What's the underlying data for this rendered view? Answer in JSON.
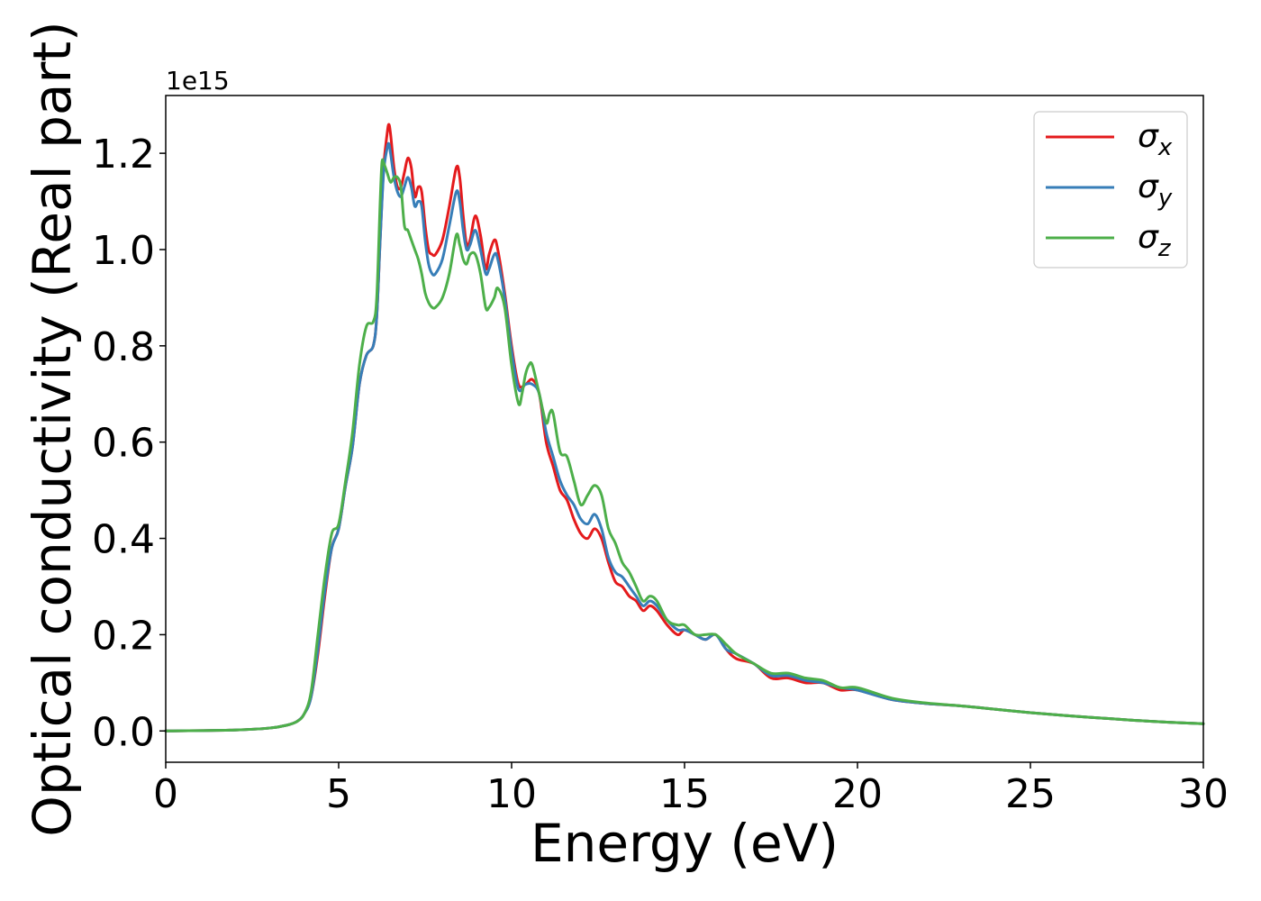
{
  "chart_data": {
    "type": "line",
    "title": "",
    "xlabel": "Energy (eV)",
    "ylabel": "Optical conductivity (Real part)",
    "y_offset_text": "1e15",
    "xlim": [
      0,
      30
    ],
    "ylim": [
      -0.065,
      1.32
    ],
    "xticks": [
      0,
      5,
      10,
      15,
      20,
      25,
      30
    ],
    "xtick_labels": [
      "0",
      "5",
      "10",
      "15",
      "20",
      "25",
      "30"
    ],
    "yticks": [
      0.0,
      0.2,
      0.4,
      0.6,
      0.8,
      1.0,
      1.2
    ],
    "ytick_labels": [
      "0.0",
      "0.2",
      "0.4",
      "0.6",
      "0.8",
      "1.0",
      "1.2"
    ],
    "grid": false,
    "legend_position": "top-right",
    "legend": [
      {
        "symbol": "σ",
        "subscript": "x",
        "color": "#e41a1c"
      },
      {
        "symbol": "σ",
        "subscript": "y",
        "color": "#377eb8"
      },
      {
        "symbol": "σ",
        "subscript": "z",
        "color": "#4daf4a"
      }
    ],
    "series": [
      {
        "name": "σx",
        "color": "#e41a1c",
        "points": [
          [
            0,
            0
          ],
          [
            2,
            0.002
          ],
          [
            3,
            0.006
          ],
          [
            3.5,
            0.012
          ],
          [
            3.8,
            0.02
          ],
          [
            4.0,
            0.035
          ],
          [
            4.2,
            0.07
          ],
          [
            4.4,
            0.16
          ],
          [
            4.6,
            0.28
          ],
          [
            4.8,
            0.38
          ],
          [
            5.0,
            0.42
          ],
          [
            5.2,
            0.51
          ],
          [
            5.4,
            0.59
          ],
          [
            5.6,
            0.72
          ],
          [
            5.8,
            0.78
          ],
          [
            6.0,
            0.8
          ],
          [
            6.1,
            0.86
          ],
          [
            6.2,
            1.02
          ],
          [
            6.3,
            1.17
          ],
          [
            6.4,
            1.24
          ],
          [
            6.45,
            1.26
          ],
          [
            6.5,
            1.24
          ],
          [
            6.6,
            1.17
          ],
          [
            6.7,
            1.13
          ],
          [
            6.8,
            1.13
          ],
          [
            6.9,
            1.16
          ],
          [
            7.0,
            1.19
          ],
          [
            7.1,
            1.17
          ],
          [
            7.2,
            1.11
          ],
          [
            7.3,
            1.13
          ],
          [
            7.4,
            1.12
          ],
          [
            7.5,
            1.05
          ],
          [
            7.6,
            1.0
          ],
          [
            7.7,
            0.99
          ],
          [
            7.8,
            0.99
          ],
          [
            8.0,
            1.02
          ],
          [
            8.2,
            1.09
          ],
          [
            8.4,
            1.17
          ],
          [
            8.5,
            1.15
          ],
          [
            8.6,
            1.07
          ],
          [
            8.7,
            1.01
          ],
          [
            8.8,
            1.02
          ],
          [
            8.95,
            1.07
          ],
          [
            9.1,
            1.03
          ],
          [
            9.25,
            0.96
          ],
          [
            9.35,
            0.99
          ],
          [
            9.5,
            1.02
          ],
          [
            9.6,
            1.0
          ],
          [
            9.8,
            0.91
          ],
          [
            10.0,
            0.8
          ],
          [
            10.2,
            0.72
          ],
          [
            10.4,
            0.72
          ],
          [
            10.6,
            0.73
          ],
          [
            10.8,
            0.7
          ],
          [
            11.0,
            0.6
          ],
          [
            11.2,
            0.55
          ],
          [
            11.4,
            0.5
          ],
          [
            11.6,
            0.48
          ],
          [
            11.8,
            0.44
          ],
          [
            12.0,
            0.41
          ],
          [
            12.2,
            0.4
          ],
          [
            12.4,
            0.42
          ],
          [
            12.6,
            0.4
          ],
          [
            12.8,
            0.35
          ],
          [
            13.0,
            0.31
          ],
          [
            13.2,
            0.3
          ],
          [
            13.4,
            0.28
          ],
          [
            13.6,
            0.27
          ],
          [
            13.8,
            0.25
          ],
          [
            14.0,
            0.26
          ],
          [
            14.2,
            0.25
          ],
          [
            14.5,
            0.22
          ],
          [
            14.8,
            0.2
          ],
          [
            15.0,
            0.21
          ],
          [
            15.3,
            0.2
          ],
          [
            15.6,
            0.19
          ],
          [
            15.9,
            0.2
          ],
          [
            16.2,
            0.17
          ],
          [
            16.5,
            0.15
          ],
          [
            17.0,
            0.14
          ],
          [
            17.5,
            0.11
          ],
          [
            18.0,
            0.11
          ],
          [
            18.5,
            0.1
          ],
          [
            19.0,
            0.1
          ],
          [
            19.5,
            0.085
          ],
          [
            20.0,
            0.085
          ],
          [
            21.0,
            0.065
          ],
          [
            22.0,
            0.057
          ],
          [
            23.0,
            0.052
          ],
          [
            24.0,
            0.045
          ],
          [
            25.0,
            0.038
          ],
          [
            26.0,
            0.032
          ],
          [
            27.0,
            0.027
          ],
          [
            28.0,
            0.022
          ],
          [
            29.0,
            0.018
          ],
          [
            30.0,
            0.015
          ]
        ]
      },
      {
        "name": "σy",
        "color": "#377eb8",
        "points": [
          [
            0,
            0
          ],
          [
            2,
            0.002
          ],
          [
            3,
            0.006
          ],
          [
            3.5,
            0.012
          ],
          [
            3.8,
            0.02
          ],
          [
            4.0,
            0.035
          ],
          [
            4.2,
            0.07
          ],
          [
            4.4,
            0.17
          ],
          [
            4.6,
            0.29
          ],
          [
            4.8,
            0.38
          ],
          [
            5.0,
            0.42
          ],
          [
            5.2,
            0.51
          ],
          [
            5.4,
            0.59
          ],
          [
            5.6,
            0.72
          ],
          [
            5.8,
            0.78
          ],
          [
            6.0,
            0.8
          ],
          [
            6.1,
            0.86
          ],
          [
            6.2,
            1.02
          ],
          [
            6.3,
            1.16
          ],
          [
            6.4,
            1.21
          ],
          [
            6.45,
            1.22
          ],
          [
            6.5,
            1.2
          ],
          [
            6.6,
            1.15
          ],
          [
            6.7,
            1.12
          ],
          [
            6.8,
            1.11
          ],
          [
            6.9,
            1.13
          ],
          [
            7.0,
            1.15
          ],
          [
            7.1,
            1.13
          ],
          [
            7.2,
            1.09
          ],
          [
            7.3,
            1.1
          ],
          [
            7.4,
            1.09
          ],
          [
            7.5,
            1.02
          ],
          [
            7.6,
            0.97
          ],
          [
            7.7,
            0.95
          ],
          [
            7.8,
            0.95
          ],
          [
            8.0,
            0.98
          ],
          [
            8.2,
            1.05
          ],
          [
            8.4,
            1.12
          ],
          [
            8.5,
            1.1
          ],
          [
            8.6,
            1.04
          ],
          [
            8.7,
            1.0
          ],
          [
            8.8,
            1.01
          ],
          [
            8.95,
            1.04
          ],
          [
            9.1,
            1.0
          ],
          [
            9.25,
            0.95
          ],
          [
            9.35,
            0.96
          ],
          [
            9.5,
            0.99
          ],
          [
            9.6,
            0.98
          ],
          [
            9.8,
            0.9
          ],
          [
            10.0,
            0.79
          ],
          [
            10.2,
            0.71
          ],
          [
            10.4,
            0.72
          ],
          [
            10.6,
            0.72
          ],
          [
            10.8,
            0.7
          ],
          [
            11.0,
            0.62
          ],
          [
            11.2,
            0.57
          ],
          [
            11.4,
            0.52
          ],
          [
            11.6,
            0.49
          ],
          [
            11.8,
            0.47
          ],
          [
            12.0,
            0.44
          ],
          [
            12.2,
            0.43
          ],
          [
            12.4,
            0.45
          ],
          [
            12.6,
            0.42
          ],
          [
            12.8,
            0.36
          ],
          [
            13.0,
            0.33
          ],
          [
            13.2,
            0.32
          ],
          [
            13.4,
            0.3
          ],
          [
            13.6,
            0.28
          ],
          [
            13.8,
            0.26
          ],
          [
            14.0,
            0.27
          ],
          [
            14.2,
            0.26
          ],
          [
            14.5,
            0.23
          ],
          [
            14.8,
            0.21
          ],
          [
            15.0,
            0.21
          ],
          [
            15.3,
            0.2
          ],
          [
            15.6,
            0.19
          ],
          [
            15.9,
            0.2
          ],
          [
            16.2,
            0.17
          ],
          [
            16.5,
            0.16
          ],
          [
            17.0,
            0.14
          ],
          [
            17.5,
            0.115
          ],
          [
            18.0,
            0.115
          ],
          [
            18.5,
            0.105
          ],
          [
            19.0,
            0.1
          ],
          [
            19.5,
            0.09
          ],
          [
            20.0,
            0.085
          ],
          [
            21.0,
            0.065
          ],
          [
            22.0,
            0.057
          ],
          [
            23.0,
            0.052
          ],
          [
            24.0,
            0.045
          ],
          [
            25.0,
            0.038
          ],
          [
            26.0,
            0.032
          ],
          [
            27.0,
            0.027
          ],
          [
            28.0,
            0.022
          ],
          [
            29.0,
            0.018
          ],
          [
            30.0,
            0.015
          ]
        ]
      },
      {
        "name": "σz",
        "color": "#4daf4a",
        "points": [
          [
            0,
            0
          ],
          [
            2,
            0.002
          ],
          [
            3,
            0.006
          ],
          [
            3.5,
            0.012
          ],
          [
            3.8,
            0.02
          ],
          [
            4.0,
            0.035
          ],
          [
            4.2,
            0.08
          ],
          [
            4.4,
            0.2
          ],
          [
            4.6,
            0.32
          ],
          [
            4.8,
            0.41
          ],
          [
            5.0,
            0.43
          ],
          [
            5.2,
            0.52
          ],
          [
            5.4,
            0.62
          ],
          [
            5.6,
            0.76
          ],
          [
            5.8,
            0.84
          ],
          [
            6.0,
            0.85
          ],
          [
            6.1,
            0.9
          ],
          [
            6.2,
            1.1
          ],
          [
            6.25,
            1.18
          ],
          [
            6.3,
            1.18
          ],
          [
            6.4,
            1.16
          ],
          [
            6.5,
            1.14
          ],
          [
            6.6,
            1.15
          ],
          [
            6.7,
            1.15
          ],
          [
            6.8,
            1.13
          ],
          [
            6.9,
            1.05
          ],
          [
            7.0,
            1.04
          ],
          [
            7.1,
            1.02
          ],
          [
            7.2,
            1.0
          ],
          [
            7.3,
            0.98
          ],
          [
            7.4,
            0.95
          ],
          [
            7.5,
            0.91
          ],
          [
            7.6,
            0.89
          ],
          [
            7.7,
            0.88
          ],
          [
            7.8,
            0.88
          ],
          [
            8.0,
            0.9
          ],
          [
            8.2,
            0.95
          ],
          [
            8.4,
            1.03
          ],
          [
            8.5,
            1.01
          ],
          [
            8.6,
            0.98
          ],
          [
            8.7,
            0.97
          ],
          [
            8.8,
            0.99
          ],
          [
            8.95,
            0.99
          ],
          [
            9.1,
            0.95
          ],
          [
            9.25,
            0.88
          ],
          [
            9.35,
            0.88
          ],
          [
            9.5,
            0.9
          ],
          [
            9.6,
            0.92
          ],
          [
            9.8,
            0.88
          ],
          [
            10.0,
            0.76
          ],
          [
            10.2,
            0.68
          ],
          [
            10.3,
            0.7
          ],
          [
            10.4,
            0.74
          ],
          [
            10.5,
            0.76
          ],
          [
            10.6,
            0.76
          ],
          [
            10.8,
            0.7
          ],
          [
            11.0,
            0.64
          ],
          [
            11.1,
            0.66
          ],
          [
            11.2,
            0.66
          ],
          [
            11.4,
            0.58
          ],
          [
            11.6,
            0.57
          ],
          [
            11.8,
            0.52
          ],
          [
            12.0,
            0.47
          ],
          [
            12.2,
            0.49
          ],
          [
            12.4,
            0.51
          ],
          [
            12.6,
            0.49
          ],
          [
            12.8,
            0.42
          ],
          [
            13.0,
            0.39
          ],
          [
            13.2,
            0.35
          ],
          [
            13.4,
            0.33
          ],
          [
            13.6,
            0.3
          ],
          [
            13.8,
            0.27
          ],
          [
            14.0,
            0.28
          ],
          [
            14.2,
            0.27
          ],
          [
            14.5,
            0.23
          ],
          [
            14.8,
            0.22
          ],
          [
            15.0,
            0.22
          ],
          [
            15.3,
            0.2
          ],
          [
            15.6,
            0.2
          ],
          [
            15.9,
            0.2
          ],
          [
            16.2,
            0.18
          ],
          [
            16.5,
            0.16
          ],
          [
            17.0,
            0.14
          ],
          [
            17.5,
            0.12
          ],
          [
            18.0,
            0.12
          ],
          [
            18.5,
            0.11
          ],
          [
            19.0,
            0.105
          ],
          [
            19.5,
            0.09
          ],
          [
            20.0,
            0.09
          ],
          [
            21.0,
            0.068
          ],
          [
            22.0,
            0.058
          ],
          [
            23.0,
            0.052
          ],
          [
            24.0,
            0.045
          ],
          [
            25.0,
            0.038
          ],
          [
            26.0,
            0.032
          ],
          [
            27.0,
            0.027
          ],
          [
            28.0,
            0.022
          ],
          [
            29.0,
            0.018
          ],
          [
            30.0,
            0.015
          ]
        ]
      }
    ]
  }
}
